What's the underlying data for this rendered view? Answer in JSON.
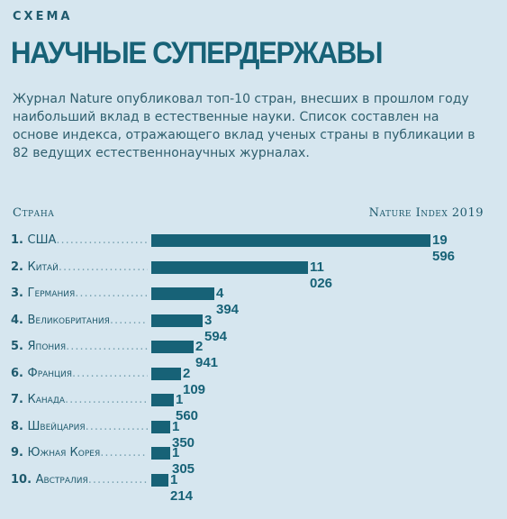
{
  "kicker": "СХЕМА",
  "title": "НАУЧНЫЕ СУПЕРДЕРЖАВЫ",
  "description": "Журнал Nature опубликовал топ-10 стран, внесших в прошлом году наибольший вклад в естественные науки. Список составлен на основе индекса, отражающего вклад ученых страны в публикации в 82 ведущих естественнонаучных журналах.",
  "header_left": "Страна",
  "header_right": "Nature Index 2019",
  "colors": {
    "bar": "#176277",
    "background": "#d6e6ef",
    "text": "#1f5a6d"
  },
  "chart_data": {
    "type": "bar",
    "orientation": "horizontal",
    "categories": [
      "1. США",
      "2. Китай",
      "3. Германия",
      "4. Великобритания",
      "5. Япония",
      "6. Франция",
      "7. Канада",
      "8. Швейцария",
      "9. Южная Корея",
      "10. Австралия"
    ],
    "values": [
      19596,
      11026,
      4394,
      3594,
      2941,
      2109,
      1560,
      1350,
      1305,
      1214
    ],
    "value_labels": [
      "19 596",
      "11 026",
      "4 394",
      "3 594",
      "2 941",
      "2 109",
      "1 560",
      "1 350",
      "1 305",
      "1 214"
    ],
    "xlim": [
      0,
      19596
    ]
  }
}
